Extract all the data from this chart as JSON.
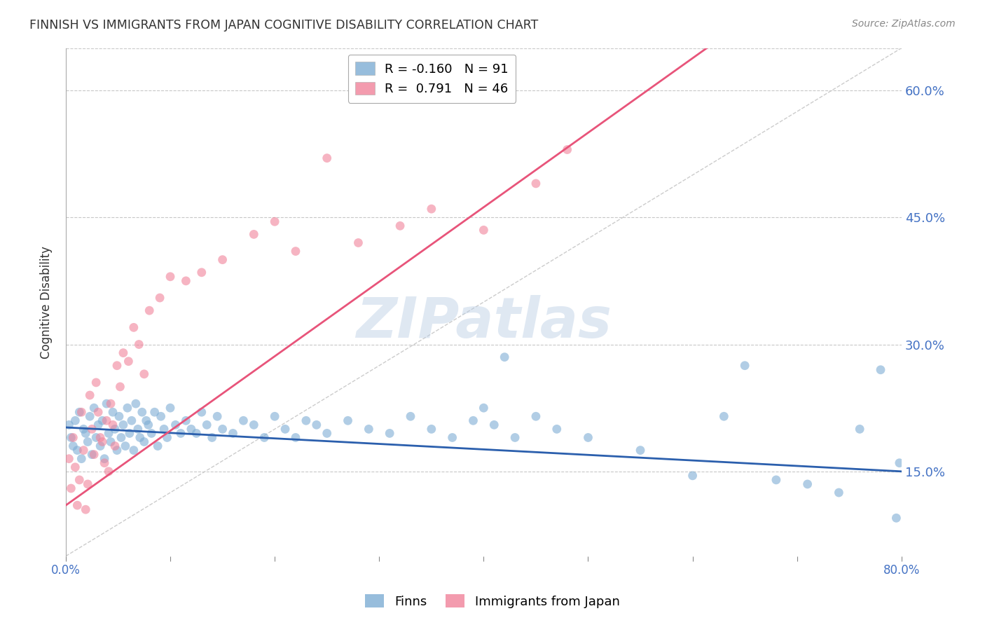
{
  "title": "FINNISH VS IMMIGRANTS FROM JAPAN COGNITIVE DISABILITY CORRELATION CHART",
  "source": "Source: ZipAtlas.com",
  "ylabel": "Cognitive Disability",
  "watermark": "ZIPatlas",
  "xmin": 0.0,
  "xmax": 80.0,
  "ymin": 5.0,
  "ymax": 65.0,
  "yticks": [
    15.0,
    30.0,
    45.0,
    60.0
  ],
  "legend_blue_r": "-0.160",
  "legend_blue_n": "91",
  "legend_pink_r": "0.791",
  "legend_pink_n": "46",
  "legend_blue_label": "Finns",
  "legend_pink_label": "Immigrants from Japan",
  "blue_color": "#7dadd4",
  "pink_color": "#f0829a",
  "blue_line_color": "#2b5fad",
  "pink_line_color": "#e8547a",
  "axis_label_color": "#4472c4",
  "title_color": "#333333",
  "grid_color": "#c8c8c8",
  "diagonal_line_color": "#cccccc",
  "background_color": "#ffffff",
  "blue_scatter_x": [
    0.3,
    0.5,
    0.7,
    0.9,
    1.1,
    1.3,
    1.5,
    1.7,
    1.9,
    2.1,
    2.3,
    2.5,
    2.7,
    2.9,
    3.1,
    3.3,
    3.5,
    3.7,
    3.9,
    4.1,
    4.3,
    4.5,
    4.7,
    4.9,
    5.1,
    5.3,
    5.5,
    5.7,
    5.9,
    6.1,
    6.3,
    6.5,
    6.7,
    6.9,
    7.1,
    7.3,
    7.5,
    7.7,
    7.9,
    8.2,
    8.5,
    8.8,
    9.1,
    9.4,
    9.7,
    10.0,
    10.5,
    11.0,
    11.5,
    12.0,
    12.5,
    13.0,
    13.5,
    14.0,
    14.5,
    15.0,
    16.0,
    17.0,
    18.0,
    19.0,
    20.0,
    21.0,
    22.0,
    23.0,
    24.0,
    25.0,
    27.0,
    29.0,
    31.0,
    33.0,
    35.0,
    37.0,
    39.0,
    41.0,
    43.0,
    45.0,
    47.0,
    50.0,
    55.0,
    60.0,
    63.0,
    65.0,
    68.0,
    71.0,
    74.0,
    76.0,
    78.0,
    79.5,
    79.8,
    40.0,
    42.0
  ],
  "blue_scatter_y": [
    20.5,
    19.0,
    18.0,
    21.0,
    17.5,
    22.0,
    16.5,
    20.0,
    19.5,
    18.5,
    21.5,
    17.0,
    22.5,
    19.0,
    20.5,
    18.0,
    21.0,
    16.5,
    23.0,
    19.5,
    18.5,
    22.0,
    20.0,
    17.5,
    21.5,
    19.0,
    20.5,
    18.0,
    22.5,
    19.5,
    21.0,
    17.5,
    23.0,
    20.0,
    19.0,
    22.0,
    18.5,
    21.0,
    20.5,
    19.5,
    22.0,
    18.0,
    21.5,
    20.0,
    19.0,
    22.5,
    20.5,
    19.5,
    21.0,
    20.0,
    19.5,
    22.0,
    20.5,
    19.0,
    21.5,
    20.0,
    19.5,
    21.0,
    20.5,
    19.0,
    21.5,
    20.0,
    19.0,
    21.0,
    20.5,
    19.5,
    21.0,
    20.0,
    19.5,
    21.5,
    20.0,
    19.0,
    21.0,
    20.5,
    19.0,
    21.5,
    20.0,
    19.0,
    17.5,
    14.5,
    21.5,
    27.5,
    14.0,
    13.5,
    12.5,
    20.0,
    27.0,
    9.5,
    16.0,
    22.5,
    28.5
  ],
  "pink_scatter_x": [
    0.3,
    0.5,
    0.7,
    0.9,
    1.1,
    1.3,
    1.5,
    1.7,
    1.9,
    2.1,
    2.3,
    2.5,
    2.7,
    2.9,
    3.1,
    3.3,
    3.5,
    3.7,
    3.9,
    4.1,
    4.3,
    4.5,
    4.7,
    4.9,
    5.2,
    5.5,
    6.0,
    6.5,
    7.0,
    7.5,
    8.0,
    9.0,
    10.0,
    11.5,
    13.0,
    15.0,
    18.0,
    20.0,
    22.0,
    25.0,
    28.0,
    32.0,
    35.0,
    40.0,
    45.0,
    48.0
  ],
  "pink_scatter_y": [
    16.5,
    13.0,
    19.0,
    15.5,
    11.0,
    14.0,
    22.0,
    17.5,
    10.5,
    13.5,
    24.0,
    20.0,
    17.0,
    25.5,
    22.0,
    19.0,
    18.5,
    16.0,
    21.0,
    15.0,
    23.0,
    20.5,
    18.0,
    27.5,
    25.0,
    29.0,
    28.0,
    32.0,
    30.0,
    26.5,
    34.0,
    35.5,
    38.0,
    37.5,
    38.5,
    40.0,
    43.0,
    44.5,
    41.0,
    52.0,
    42.0,
    44.0,
    46.0,
    43.5,
    49.0,
    53.0
  ]
}
